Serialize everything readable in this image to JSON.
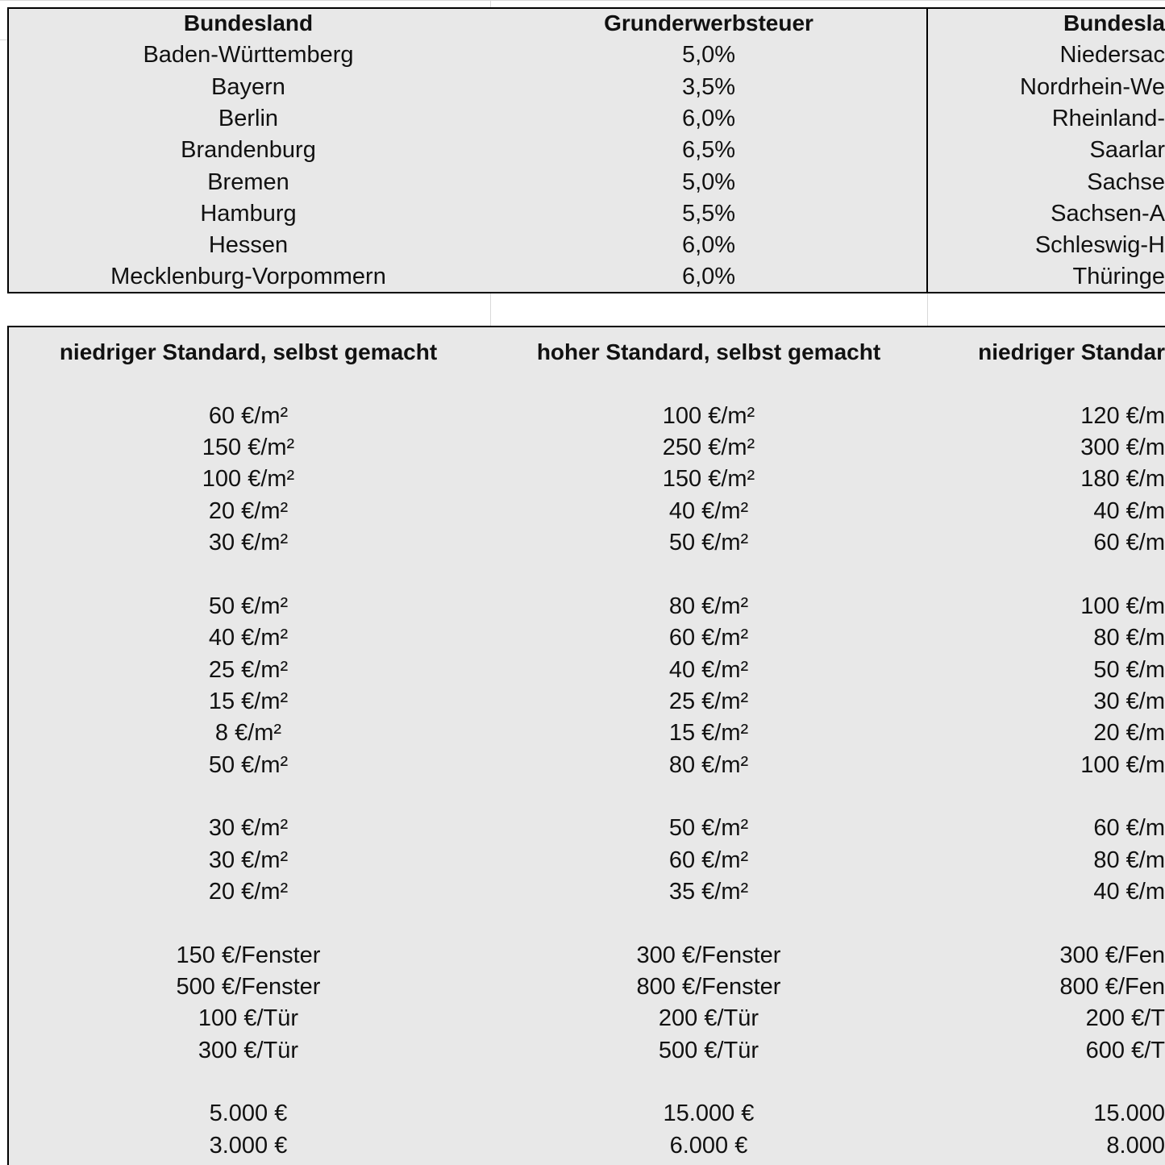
{
  "top_table": {
    "header": [
      "Bundesland",
      "Grunderwerbsteuer",
      "Bundesla"
    ],
    "rows": [
      [
        "Baden-Württemberg",
        "5,0%",
        "Niedersac"
      ],
      [
        "Bayern",
        "3,5%",
        "Nordrhein-We"
      ],
      [
        "Berlin",
        "6,0%",
        "Rheinland-"
      ],
      [
        "Brandenburg",
        "6,5%",
        "Saarlar"
      ],
      [
        "Bremen",
        "5,0%",
        "Sachse"
      ],
      [
        "Hamburg",
        "5,5%",
        "Sachsen-A"
      ],
      [
        "Hessen",
        "6,0%",
        "Schleswig-H"
      ],
      [
        "Mecklenburg-Vorpommern",
        "6,0%",
        "Thüringe"
      ]
    ]
  },
  "bottom_table": {
    "header": [
      "niedriger Standard, selbst gemacht",
      "hoher Standard, selbst gemacht",
      "niedriger Standar"
    ],
    "groups": [
      [
        [
          "60 €/m²",
          "100 €/m²",
          "120 €/m"
        ],
        [
          "150 €/m²",
          "250 €/m²",
          "300 €/m"
        ],
        [
          "100 €/m²",
          "150 €/m²",
          "180 €/m"
        ],
        [
          "20 €/m²",
          "40 €/m²",
          "40 €/m"
        ],
        [
          "30 €/m²",
          "50 €/m²",
          "60 €/m"
        ]
      ],
      [
        [
          "50 €/m²",
          "80 €/m²",
          "100 €/m"
        ],
        [
          "40 €/m²",
          "60 €/m²",
          "80 €/m"
        ],
        [
          "25 €/m²",
          "40 €/m²",
          "50 €/m"
        ],
        [
          "15 €/m²",
          "25 €/m²",
          "30 €/m"
        ],
        [
          "8 €/m²",
          "15 €/m²",
          "20 €/m"
        ],
        [
          "50 €/m²",
          "80 €/m²",
          "100 €/m"
        ]
      ],
      [
        [
          "30 €/m²",
          "50 €/m²",
          "60 €/m"
        ],
        [
          "30 €/m²",
          "60 €/m²",
          "80 €/m"
        ],
        [
          "20 €/m²",
          "35 €/m²",
          "40 €/m"
        ]
      ],
      [
        [
          "150 €/Fenster",
          "300 €/Fenster",
          "300 €/Fen"
        ],
        [
          "500 €/Fenster",
          "800 €/Fenster",
          "800 €/Fen"
        ],
        [
          "100 €/Tür",
          "200 €/Tür",
          "200 €/T"
        ],
        [
          "300 €/Tür",
          "500 €/Tür",
          "600 €/T"
        ]
      ],
      [
        [
          "5.000 €",
          "15.000 €",
          "15.000"
        ],
        [
          "3.000 €",
          "6.000 €",
          "8.000"
        ]
      ]
    ]
  }
}
